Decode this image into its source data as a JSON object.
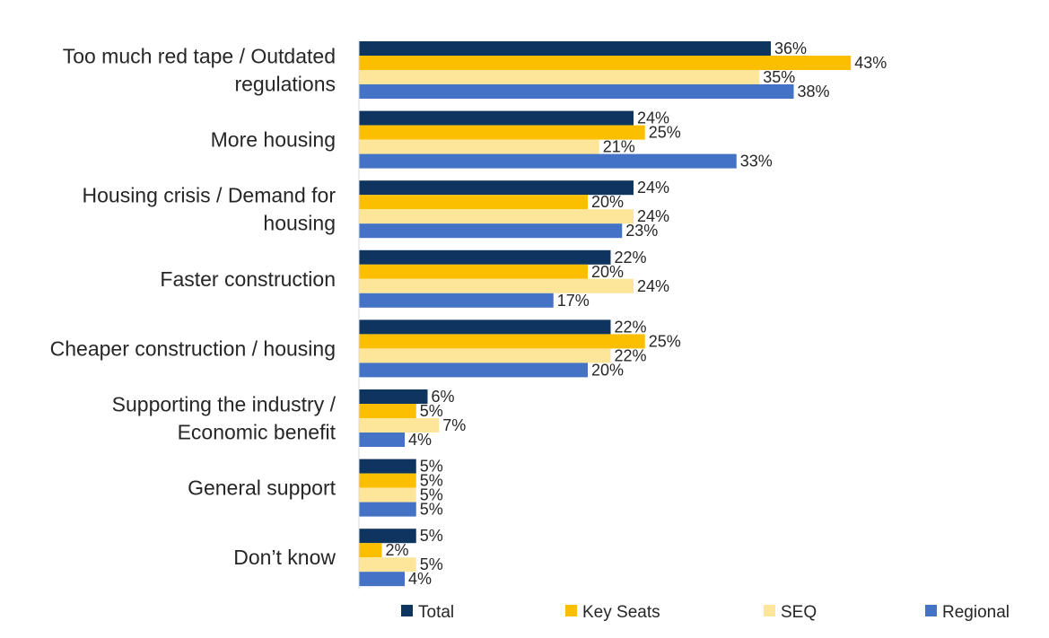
{
  "chart_data": {
    "type": "bar",
    "orientation": "horizontal",
    "categories": [
      [
        "Too much red tape / Outdated",
        "regulations"
      ],
      [
        "More housing"
      ],
      [
        "Housing crisis / Demand for",
        "housing"
      ],
      [
        "Faster construction"
      ],
      [
        "Cheaper construction / housing"
      ],
      [
        "Supporting the industry /",
        "Economic benefit"
      ],
      [
        "General support"
      ],
      [
        "Don’t know"
      ]
    ],
    "series": [
      {
        "name": "Total",
        "color": "#0e3560",
        "values": [
          36,
          24,
          24,
          22,
          22,
          6,
          5,
          5
        ]
      },
      {
        "name": "Key Seats",
        "color": "#fcbf00",
        "values": [
          43,
          25,
          20,
          20,
          25,
          5,
          5,
          2
        ]
      },
      {
        "name": "SEQ",
        "color": "#fde599",
        "values": [
          35,
          21,
          24,
          24,
          22,
          7,
          5,
          5
        ]
      },
      {
        "name": "Regional",
        "color": "#4472c4",
        "values": [
          38,
          33,
          23,
          17,
          20,
          4,
          5,
          4
        ]
      }
    ],
    "value_suffix": "%",
    "xlim": [
      0,
      45
    ],
    "grid": false,
    "legend_position": "bottom",
    "title": "",
    "xlabel": "",
    "ylabel": ""
  }
}
